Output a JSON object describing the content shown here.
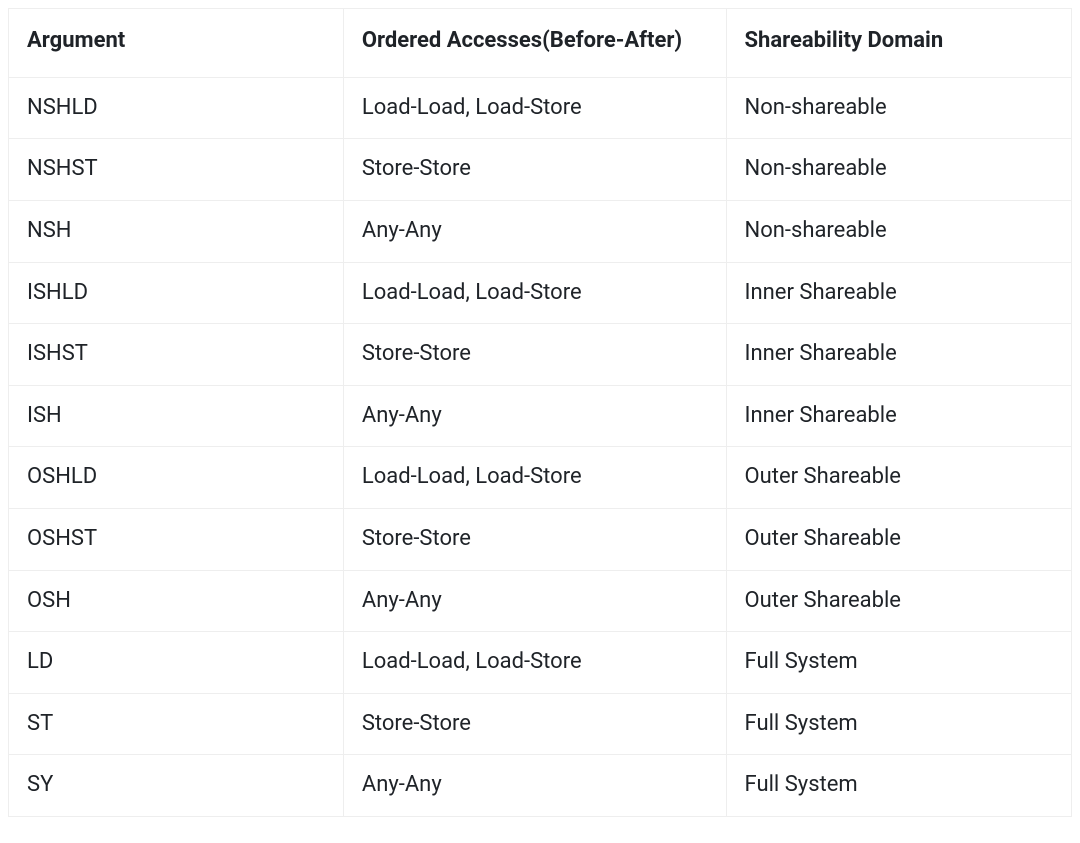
{
  "table": {
    "type": "table",
    "background_color": "#ffffff",
    "border_color": "#eeeeee",
    "header_font_weight": 700,
    "header_fontsize": 22,
    "cell_fontsize": 22,
    "text_color": "#1f2328",
    "columns": [
      {
        "key": "argument",
        "label": "Argument",
        "width_pct": 31.5,
        "align": "left"
      },
      {
        "key": "accesses",
        "label": "Ordered Accesses(Before-After)",
        "width_pct": 36.0,
        "align": "left"
      },
      {
        "key": "domain",
        "label": "Shareability Domain",
        "width_pct": 32.5,
        "align": "left"
      }
    ],
    "rows": [
      {
        "argument": "NSHLD",
        "accesses": "Load-Load, Load-Store",
        "domain": "Non-shareable"
      },
      {
        "argument": "NSHST",
        "accesses": "Store-Store",
        "domain": "Non-shareable"
      },
      {
        "argument": "NSH",
        "accesses": "Any-Any",
        "domain": "Non-shareable"
      },
      {
        "argument": "ISHLD",
        "accesses": "Load-Load, Load-Store",
        "domain": "Inner Shareable"
      },
      {
        "argument": "ISHST",
        "accesses": "Store-Store",
        "domain": "Inner Shareable"
      },
      {
        "argument": "ISH",
        "accesses": "Any-Any",
        "domain": "Inner Shareable"
      },
      {
        "argument": "OSHLD",
        "accesses": "Load-Load, Load-Store",
        "domain": "Outer Shareable"
      },
      {
        "argument": "OSHST",
        "accesses": "Store-Store",
        "domain": "Outer Shareable"
      },
      {
        "argument": "OSH",
        "accesses": "Any-Any",
        "domain": "Outer Shareable"
      },
      {
        "argument": "LD",
        "accesses": "Load-Load, Load-Store",
        "domain": "Full System"
      },
      {
        "argument": "ST",
        "accesses": "Store-Store",
        "domain": "Full System"
      },
      {
        "argument": "SY",
        "accesses": "Any-Any",
        "domain": "Full System"
      }
    ]
  }
}
